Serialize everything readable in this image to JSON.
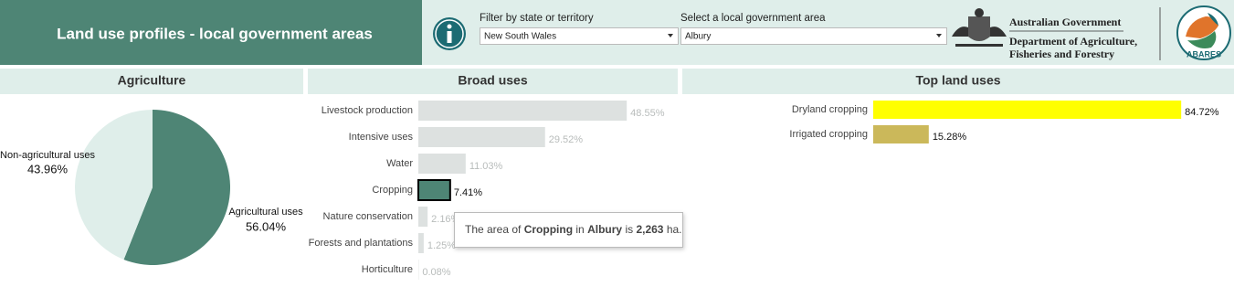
{
  "header": {
    "title": "Land use profiles - local government areas"
  },
  "filters": [
    {
      "label": "Filter by state or territory",
      "value": "New South Wales"
    },
    {
      "label": "Select a local government area",
      "value": "Albury"
    }
  ],
  "logos": {
    "government": [
      "Australian Government",
      "Department of Agriculture,",
      "Fisheries and Forestry"
    ],
    "abares": "ABARES"
  },
  "tooltip": [
    "The area of",
    "Cropping",
    "in",
    "Albury",
    "is",
    "2,263",
    "ha."
  ],
  "chart_data": [
    {
      "type": "pie",
      "title": "Agriculture",
      "categories": [
        "Agricultural uses",
        "Non-agricultural uses"
      ],
      "values": [
        56.04,
        43.96
      ],
      "value_labels": [
        "56.04%",
        "43.96%"
      ],
      "colors": [
        "#4e8575",
        "#dfeeea"
      ]
    },
    {
      "type": "bar",
      "orientation": "horizontal",
      "title": "Broad uses",
      "categories": [
        "Livestock production",
        "Intensive uses",
        "Water",
        "Cropping",
        "Nature conservation",
        "Forests and plantations",
        "Horticulture"
      ],
      "values": [
        48.55,
        29.52,
        11.03,
        7.41,
        2.16,
        1.25,
        0.08
      ],
      "value_labels": [
        "48.55%",
        "29.52%",
        "11.03%",
        "7.41%",
        "2.16%",
        "1.25%",
        "0.08%"
      ],
      "colors": [
        "#dde1e0",
        "#dde1e0",
        "#dde1e0",
        "#4e8575",
        "#dde1e0",
        "#dde1e0",
        "#dde1e0"
      ]
    },
    {
      "type": "bar",
      "orientation": "horizontal",
      "title": "Top land uses",
      "categories": [
        "Dryland cropping",
        "Irrigated cropping"
      ],
      "values": [
        84.72,
        15.28
      ],
      "value_labels": [
        "84.72%",
        "15.28%"
      ],
      "colors": [
        "#ffff00",
        "#cbb85a"
      ]
    }
  ]
}
